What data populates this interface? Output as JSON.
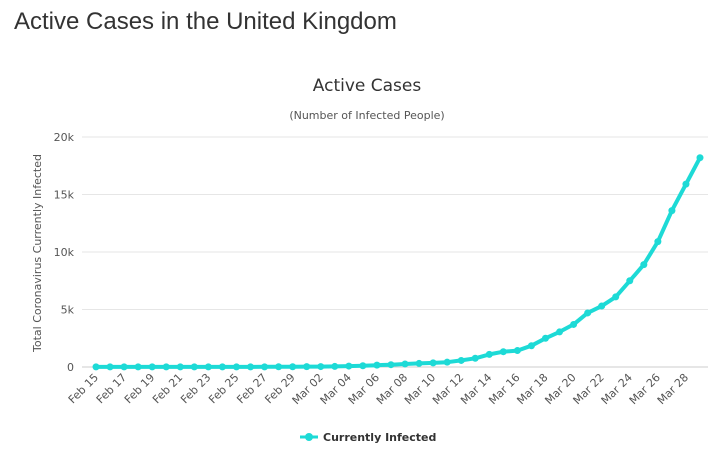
{
  "page": {
    "title": "Active Cases in the United Kingdom"
  },
  "chart_data": {
    "type": "line",
    "title": "Active Cases",
    "subtitle": "(Number of Infected People)",
    "xlabel": "",
    "ylabel": "Total Coronavirus Currently Infected",
    "ylim": [
      0,
      20000
    ],
    "yticks": [
      0,
      5000,
      10000,
      15000,
      20000
    ],
    "ytick_labels": [
      "0",
      "5k",
      "10k",
      "15k",
      "20k"
    ],
    "grid": true,
    "legend_position": "bottom-center",
    "x": [
      "Feb 15",
      "Feb 16",
      "Feb 17",
      "Feb 18",
      "Feb 19",
      "Feb 20",
      "Feb 21",
      "Feb 22",
      "Feb 23",
      "Feb 24",
      "Feb 25",
      "Feb 26",
      "Feb 27",
      "Feb 28",
      "Feb 29",
      "Mar 01",
      "Mar 02",
      "Mar 03",
      "Mar 04",
      "Mar 05",
      "Mar 06",
      "Mar 07",
      "Mar 08",
      "Mar 09",
      "Mar 10",
      "Mar 11",
      "Mar 12",
      "Mar 13",
      "Mar 14",
      "Mar 15",
      "Mar 16",
      "Mar 17",
      "Mar 18",
      "Mar 19",
      "Mar 20",
      "Mar 21",
      "Mar 22",
      "Mar 23",
      "Mar 24",
      "Mar 25",
      "Mar 26",
      "Mar 27",
      "Mar 28",
      "Mar 29"
    ],
    "tick_labels": [
      "Feb 15",
      "Feb 17",
      "Feb 19",
      "Feb 21",
      "Feb 23",
      "Feb 25",
      "Feb 27",
      "Feb 29",
      "Mar 02",
      "Mar 04",
      "Mar 06",
      "Mar 08",
      "Mar 10",
      "Mar 12",
      "Mar 14",
      "Mar 16",
      "Mar 18",
      "Mar 20",
      "Mar 22",
      "Mar 24",
      "Mar 26",
      "Mar 28"
    ],
    "series": [
      {
        "name": "Currently Infected",
        "color": "#1ddad6",
        "values": [
          8,
          8,
          8,
          8,
          8,
          8,
          8,
          8,
          12,
          12,
          12,
          12,
          14,
          19,
          22,
          35,
          38,
          50,
          80,
          110,
          160,
          200,
          265,
          310,
          360,
          420,
          570,
          760,
          1100,
          1330,
          1430,
          1850,
          2500,
          3050,
          3700,
          4700,
          5300,
          6100,
          7500,
          8900,
          10900,
          13600,
          15900,
          18200
        ]
      }
    ]
  }
}
